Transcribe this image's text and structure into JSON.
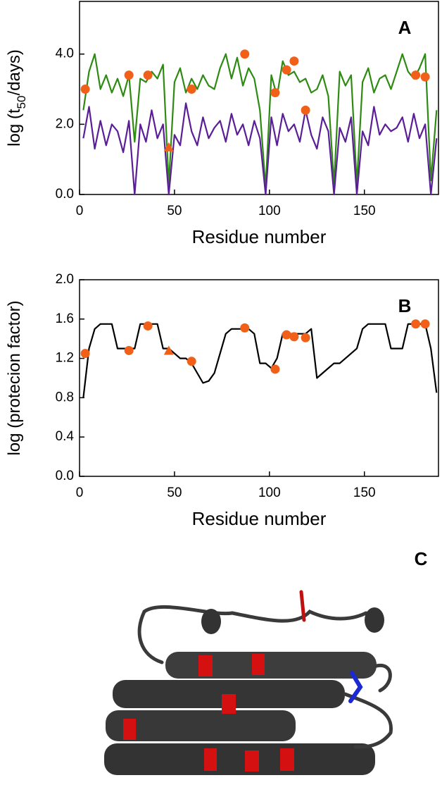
{
  "chart_data": [
    {
      "type": "line",
      "panel_label": "A",
      "y_label_parts": [
        "log (t",
        "50",
        "/days)"
      ],
      "x_label": "Residue number",
      "xlim": [
        0,
        189
      ],
      "xticks": [
        0,
        50,
        100,
        150
      ],
      "ylim": [
        0,
        5.5
      ],
      "yticks": [
        {
          "value": 0,
          "label": "0.0"
        },
        {
          "value": 2,
          "label": "2.0"
        },
        {
          "value": 4,
          "label": "4.0"
        }
      ],
      "series": [
        {
          "color": "#2e8b12",
          "mode": "line",
          "x": [
            2,
            5,
            8,
            11,
            14,
            17,
            20,
            23,
            26,
            29,
            32,
            35,
            38,
            41,
            44,
            47,
            50,
            53,
            56,
            59,
            62,
            65,
            68,
            71,
            74,
            77,
            80,
            83,
            86,
            89,
            92,
            95,
            98,
            101,
            104,
            107,
            110,
            113,
            116,
            119,
            122,
            125,
            128,
            131,
            134,
            137,
            140,
            143,
            146,
            149,
            152,
            155,
            158,
            161,
            164,
            167,
            170,
            173,
            176,
            179,
            182,
            185,
            188
          ],
          "values": [
            2.4,
            3.5,
            4.0,
            3.0,
            3.4,
            2.9,
            3.3,
            2.8,
            3.4,
            1.5,
            3.3,
            3.2,
            3.5,
            3.3,
            3.7,
            0.3,
            3.2,
            3.6,
            2.9,
            3.3,
            3.0,
            3.4,
            3.1,
            3.0,
            3.6,
            4.0,
            3.3,
            3.9,
            3.1,
            3.6,
            3.3,
            2.4,
            0.2,
            3.4,
            2.8,
            3.8,
            3.4,
            3.5,
            3.2,
            3.3,
            2.9,
            3.0,
            3.4,
            2.8,
            0.3,
            3.5,
            3.1,
            3.4,
            0.3,
            3.2,
            3.6,
            2.9,
            3.3,
            3.4,
            3.0,
            3.5,
            4.0,
            3.5,
            3.3,
            3.6,
            4.0,
            0.4,
            2.4
          ]
        },
        {
          "color": "#5a1e96",
          "mode": "line",
          "x": [
            2,
            5,
            8,
            11,
            14,
            17,
            20,
            23,
            26,
            29,
            32,
            35,
            38,
            41,
            44,
            47,
            50,
            53,
            56,
            59,
            62,
            65,
            68,
            71,
            74,
            77,
            80,
            83,
            86,
            89,
            92,
            95,
            98,
            101,
            104,
            107,
            110,
            113,
            116,
            119,
            122,
            125,
            128,
            131,
            134,
            137,
            140,
            143,
            146,
            149,
            152,
            155,
            158,
            161,
            164,
            167,
            170,
            173,
            176,
            179,
            182,
            185,
            188
          ],
          "values": [
            1.6,
            2.5,
            1.3,
            2.1,
            1.4,
            2.0,
            1.8,
            1.2,
            2.1,
            0.0,
            2.0,
            1.5,
            2.4,
            1.6,
            2.0,
            0.0,
            1.7,
            1.4,
            2.6,
            1.8,
            1.4,
            2.2,
            1.6,
            1.9,
            2.1,
            1.5,
            2.3,
            1.7,
            2.0,
            1.4,
            2.1,
            1.6,
            0.0,
            2.2,
            1.4,
            2.3,
            1.8,
            2.0,
            1.5,
            2.4,
            1.7,
            1.3,
            2.2,
            1.8,
            0.0,
            1.9,
            1.5,
            2.2,
            0.0,
            1.8,
            1.4,
            2.5,
            1.7,
            2.0,
            1.8,
            1.9,
            2.2,
            1.5,
            2.3,
            1.6,
            2.0,
            0.0,
            1.6
          ]
        },
        {
          "color": "#f06018",
          "mode": "circle",
          "x": [
            3,
            26,
            36,
            59,
            87,
            103,
            109,
            113,
            119,
            177,
            182
          ],
          "values": [
            3.0,
            3.4,
            3.4,
            3.0,
            4.0,
            2.9,
            3.55,
            3.8,
            2.4,
            3.4,
            3.35
          ]
        },
        {
          "color": "#f06018",
          "mode": "triangle",
          "x": [
            47
          ],
          "values": [
            1.35
          ]
        }
      ]
    },
    {
      "type": "line",
      "panel_label": "B",
      "y_label_parts": [
        "log (protecion factor)"
      ],
      "x_label": "Residue number",
      "xlim": [
        0,
        189
      ],
      "xticks": [
        0,
        50,
        100,
        150
      ],
      "ylim": [
        0,
        2
      ],
      "yticks": [
        {
          "value": 0,
          "label": "0.0"
        },
        0.4,
        0.8,
        1.2,
        1.6,
        {
          "value": 2,
          "label": "2.0"
        }
      ],
      "series": [
        {
          "color": "#000000",
          "mode": "line",
          "x": [
            2,
            5,
            8,
            11,
            14,
            17,
            20,
            23,
            26,
            29,
            32,
            35,
            38,
            41,
            44,
            47,
            50,
            53,
            56,
            59,
            62,
            65,
            68,
            71,
            74,
            77,
            80,
            83,
            86,
            89,
            92,
            95,
            98,
            101,
            104,
            107,
            110,
            113,
            116,
            119,
            122,
            125,
            128,
            131,
            134,
            137,
            140,
            143,
            146,
            149,
            152,
            155,
            158,
            161,
            164,
            167,
            170,
            173,
            176,
            179,
            182,
            185,
            188
          ],
          "values": [
            0.8,
            1.3,
            1.5,
            1.55,
            1.55,
            1.55,
            1.3,
            1.3,
            1.3,
            1.3,
            1.55,
            1.55,
            1.55,
            1.55,
            1.3,
            1.3,
            1.25,
            1.2,
            1.2,
            1.15,
            1.05,
            0.95,
            0.97,
            1.05,
            1.25,
            1.45,
            1.5,
            1.5,
            1.5,
            1.5,
            1.45,
            1.15,
            1.15,
            1.1,
            1.2,
            1.45,
            1.45,
            1.45,
            1.45,
            1.45,
            1.5,
            1.0,
            1.05,
            1.1,
            1.15,
            1.15,
            1.2,
            1.25,
            1.3,
            1.5,
            1.55,
            1.55,
            1.55,
            1.55,
            1.3,
            1.3,
            1.3,
            1.55,
            1.55,
            1.55,
            1.55,
            1.3,
            0.85
          ]
        },
        {
          "color": "#f06018",
          "mode": "circle",
          "x": [
            3,
            26,
            36,
            59,
            87,
            103,
            109,
            113,
            119,
            177,
            182
          ],
          "values": [
            1.25,
            1.28,
            1.53,
            1.17,
            1.51,
            1.09,
            1.44,
            1.42,
            1.41,
            1.55,
            1.55
          ]
        },
        {
          "color": "#f06018",
          "mode": "triangle",
          "x": [
            47
          ],
          "values": [
            1.28
          ]
        }
      ]
    }
  ],
  "panel_c": {
    "label": "C"
  }
}
